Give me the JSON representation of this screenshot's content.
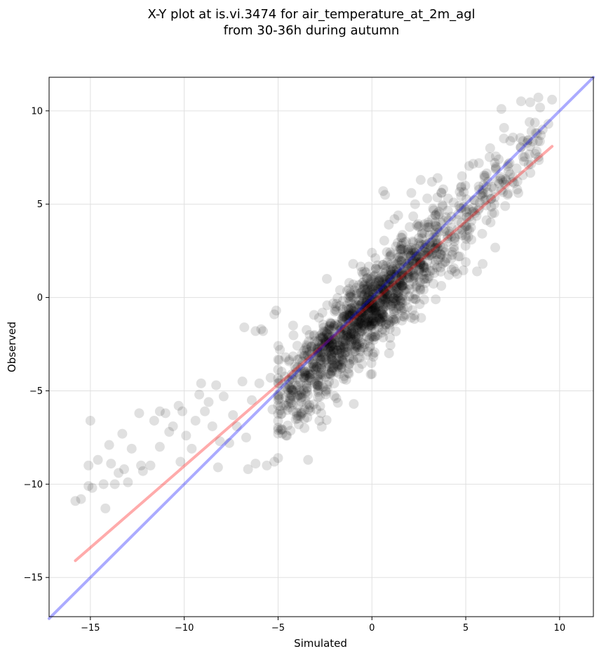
{
  "chart_data": {
    "type": "scatter",
    "title": [
      "X-Y plot at is.vi.3474 for air_temperature_at_2m_agl",
      "from 30-36h during autumn"
    ],
    "xlabel": "Simulated",
    "ylabel": "Observed",
    "xlim": [
      -17.2,
      11.8
    ],
    "ylim": [
      -17.1,
      11.8
    ],
    "xticks": [
      -15,
      -10,
      -5,
      0,
      5,
      10
    ],
    "yticks": [
      -15,
      -10,
      -5,
      0,
      5,
      10
    ],
    "xtick_labels": [
      "−15",
      "−10",
      "−5",
      "0",
      "5",
      "10"
    ],
    "ytick_labels": [
      "−15",
      "−10",
      "−5",
      "0",
      "5",
      "10"
    ],
    "grid": true,
    "point_color": "#000000",
    "point_alpha": 0.12,
    "highlight_points": [
      [
        -15.0,
        -6.6
      ],
      [
        -15.8,
        -10.9
      ],
      [
        -15.5,
        -10.8
      ],
      [
        -15.1,
        -9.0
      ],
      [
        -15.1,
        -10.1
      ],
      [
        -14.9,
        -10.2
      ],
      [
        -14.6,
        -8.7
      ],
      [
        -14.3,
        -10.0
      ],
      [
        -14.2,
        -11.3
      ],
      [
        -14.0,
        -7.9
      ],
      [
        -13.9,
        -8.9
      ],
      [
        -13.7,
        -10.0
      ],
      [
        -13.5,
        -9.4
      ],
      [
        -13.3,
        -7.3
      ],
      [
        -13.2,
        -9.2
      ],
      [
        -13.0,
        -9.9
      ],
      [
        -12.8,
        -8.1
      ],
      [
        -12.4,
        -6.2
      ],
      [
        -12.3,
        -9.0
      ],
      [
        -12.2,
        -9.3
      ],
      [
        -11.8,
        -9.0
      ],
      [
        -11.6,
        -6.6
      ],
      [
        -11.3,
        -6.1
      ],
      [
        -11.3,
        -8.0
      ],
      [
        -11.0,
        -6.2
      ],
      [
        -10.8,
        -7.2
      ],
      [
        -10.6,
        -6.9
      ],
      [
        -10.3,
        -5.8
      ],
      [
        -10.2,
        -8.8
      ],
      [
        -10.1,
        -6.1
      ],
      [
        -9.9,
        -7.4
      ],
      [
        -9.6,
        -8.1
      ],
      [
        -9.4,
        -6.6
      ],
      [
        -9.2,
        -5.2
      ],
      [
        -9.1,
        -4.6
      ],
      [
        -8.9,
        -6.1
      ],
      [
        -8.7,
        -5.6
      ],
      [
        -8.5,
        -6.9
      ],
      [
        -8.3,
        -4.7
      ],
      [
        -8.2,
        -9.1
      ],
      [
        -8.1,
        -7.7
      ],
      [
        -7.9,
        -5.3
      ],
      [
        -7.6,
        -7.8
      ],
      [
        -7.4,
        -6.3
      ],
      [
        -7.2,
        -6.9
      ],
      [
        -6.9,
        -4.5
      ],
      [
        -6.7,
        -7.5
      ],
      [
        -6.6,
        -9.2
      ],
      [
        -6.4,
        -5.5
      ],
      [
        -6.2,
        -8.9
      ],
      [
        -6.0,
        -4.6
      ],
      [
        -5.8,
        -1.8
      ],
      [
        -5.6,
        -9.0
      ],
      [
        -5.4,
        -4.3
      ],
      [
        -5.3,
        -6.0
      ],
      [
        -5.2,
        -8.8
      ],
      [
        -5.0,
        -8.6
      ],
      [
        -6.8,
        -1.6
      ],
      [
        -6.2,
        -1.8
      ],
      [
        -5.9,
        -1.7
      ],
      [
        -5.2,
        -0.9
      ],
      [
        -5.1,
        -0.7
      ],
      [
        -4.9,
        -2.8
      ],
      [
        -4.6,
        -3.2
      ],
      [
        -4.2,
        -1.5
      ],
      [
        -3.9,
        -6.8
      ],
      [
        -3.6,
        -6.5
      ],
      [
        -3.4,
        -8.7
      ],
      [
        -3.3,
        -5.9
      ],
      [
        -3.1,
        -3.5
      ],
      [
        -2.8,
        -6.6
      ],
      [
        -2.7,
        -6.2
      ],
      [
        -2.5,
        -2.4
      ],
      [
        -2.4,
        1.0
      ],
      [
        -2.0,
        -2.2
      ],
      [
        -1.9,
        -5.4
      ],
      [
        -1.7,
        0.4
      ],
      [
        -1.2,
        -3.2
      ],
      [
        -1.0,
        1.8
      ],
      [
        -0.7,
        -3.8
      ],
      [
        -0.6,
        -1.4
      ],
      [
        -0.4,
        1.4
      ],
      [
        -0.2,
        -2.9
      ],
      [
        0.0,
        2.4
      ],
      [
        0.0,
        -4.1
      ],
      [
        0.5,
        -1.3
      ],
      [
        0.6,
        5.7
      ],
      [
        0.7,
        5.5
      ],
      [
        0.9,
        3.9
      ],
      [
        1.2,
        4.2
      ],
      [
        1.4,
        4.4
      ],
      [
        1.6,
        3.2
      ],
      [
        2.1,
        5.6
      ],
      [
        2.3,
        5.0
      ],
      [
        2.6,
        6.3
      ],
      [
        3.0,
        3.9
      ],
      [
        3.2,
        6.2
      ],
      [
        3.5,
        6.4
      ],
      [
        3.4,
        -0.1
      ],
      [
        3.8,
        5.8
      ],
      [
        4.1,
        1.2
      ],
      [
        4.4,
        3.0
      ],
      [
        4.8,
        6.5
      ],
      [
        5.0,
        1.9
      ],
      [
        5.3,
        3.1
      ],
      [
        5.6,
        1.4
      ],
      [
        5.9,
        1.8
      ],
      [
        5.7,
        7.2
      ],
      [
        6.0,
        5.2
      ],
      [
        6.3,
        8.0
      ],
      [
        6.6,
        7.0
      ],
      [
        6.9,
        10.1
      ],
      [
        7.1,
        4.9
      ],
      [
        7.5,
        6.2
      ],
      [
        7.8,
        5.6
      ],
      [
        8.1,
        7.3
      ],
      [
        8.4,
        9.4
      ],
      [
        8.5,
        8.9
      ],
      [
        8.8,
        8.8
      ],
      [
        9.0,
        8.7
      ],
      [
        9.1,
        9.0
      ],
      [
        9.4,
        9.3
      ],
      [
        9.6,
        10.6
      ],
      [
        8.7,
        7.7
      ],
      [
        6.4,
        4.5
      ],
      [
        4.6,
        2.2
      ]
    ],
    "cloud_center_slope": 1.0,
    "cloud_center_intercept": -0.6,
    "cloud_x_range": [
      -5.0,
      9.0
    ],
    "cloud_residual_sd": 1.1,
    "cloud_count": 1400,
    "reference_line": {
      "label": "",
      "color": "#0000ff",
      "alpha": 0.33,
      "x": [
        -17.2,
        11.8
      ],
      "y": [
        -17.2,
        11.8
      ]
    },
    "fit_line": {
      "label": "",
      "color": "#ff0000",
      "alpha": 0.33,
      "x": [
        -15.8,
        9.6
      ],
      "y": [
        -14.1,
        8.1
      ]
    }
  }
}
